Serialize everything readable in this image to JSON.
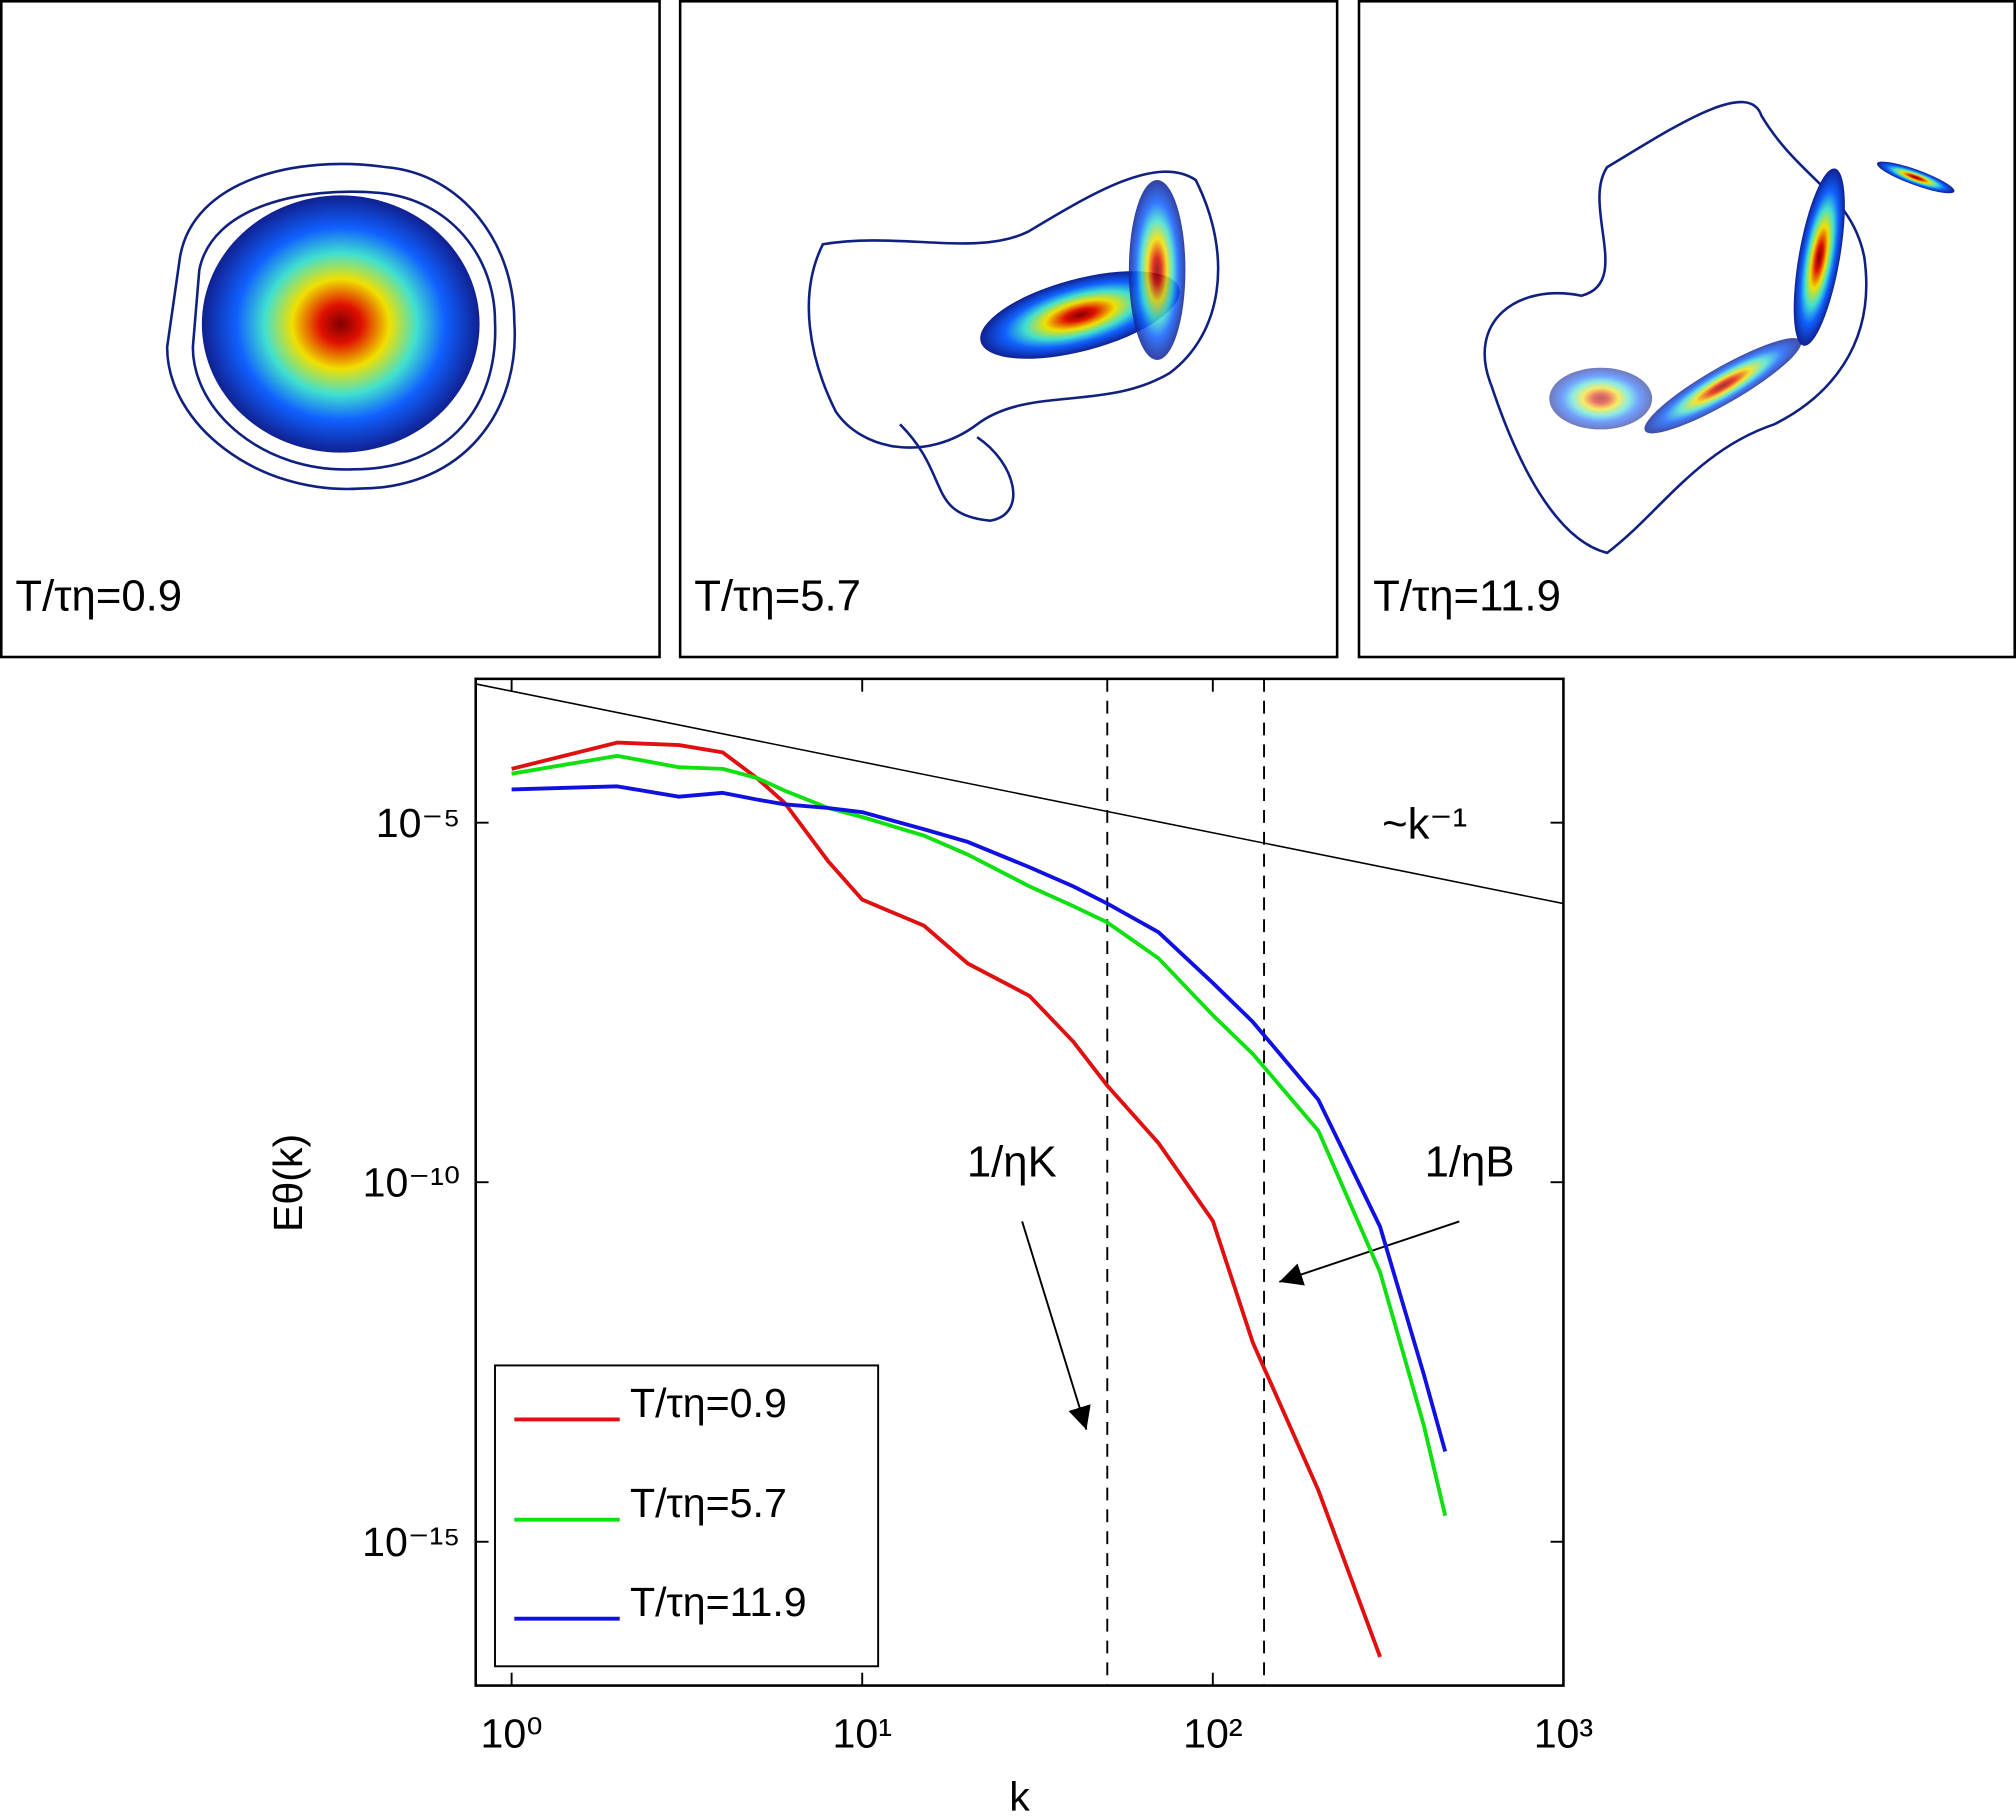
{
  "panels": [
    {
      "label": "T/τη=0.9"
    },
    {
      "label": "T/τη=5.7"
    },
    {
      "label": "T/τη=11.9"
    }
  ],
  "chart_data": {
    "type": "line",
    "xlabel": "k",
    "ylabel": "Eθ(k)",
    "xscale": "log",
    "yscale": "log",
    "xlim": [
      0.79,
      1000
    ],
    "ylim": [
      1e-17,
      0.001
    ],
    "xticks": [
      {
        "value": 1,
        "label": "10⁰"
      },
      {
        "value": 10,
        "label": "10¹"
      },
      {
        "value": 100,
        "label": "10²"
      },
      {
        "value": 1000,
        "label": "10³"
      }
    ],
    "yticks": [
      {
        "value": 1e-15,
        "label": "10⁻¹⁵"
      },
      {
        "value": 1e-10,
        "label": "10⁻¹⁰"
      },
      {
        "value": 1e-05,
        "label": "10⁻⁵"
      }
    ],
    "legend": "lower left",
    "x": [
      1,
      2,
      3,
      4,
      5,
      6,
      8,
      10,
      15,
      20,
      30,
      40,
      50,
      70,
      100,
      130,
      200,
      300,
      400,
      460
    ],
    "series": [
      {
        "name": "T/τη=0.9",
        "color": "#e01010",
        "values": [
          5.6e-05,
          0.00013,
          0.00012,
          9.5e-05,
          4.2e-05,
          1.9e-05,
          2.9e-06,
          8.5e-07,
          3.7e-07,
          1.1e-07,
          3.9e-08,
          9e-09,
          2.2e-09,
          3.5e-10,
          2.9e-11,
          5.9e-13,
          5.2e-15,
          2.5e-17,
          null,
          null
        ]
      },
      {
        "name": "T/τη=5.7",
        "color": "#10e010",
        "values": [
          4.8e-05,
          8.5e-05,
          5.9e-05,
          5.6e-05,
          4.2e-05,
          2.8e-05,
          1.6e-05,
          1.2e-05,
          6.6e-06,
          3.6e-06,
          1.3e-06,
          6.9e-07,
          4.1e-07,
          1.3e-07,
          2.1e-08,
          6.1e-09,
          5.2e-10,
          5.6e-12,
          4.1e-14,
          2.3e-15
        ]
      },
      {
        "name": "T/τη=11.9",
        "color": "#1010e0",
        "values": [
          2.9e-05,
          3.2e-05,
          2.3e-05,
          2.6e-05,
          2.1e-05,
          1.8e-05,
          1.6e-05,
          1.4e-05,
          8.1e-06,
          5.4e-06,
          2.4e-06,
          1.3e-06,
          7.5e-07,
          3e-07,
          5.9e-08,
          1.7e-08,
          1.4e-09,
          2.4e-11,
          2.1e-13,
          1.8e-14
        ]
      }
    ],
    "reference_line": {
      "x": [
        0.79,
        1000
      ],
      "values": [
        0.00085,
        7.5e-07
      ]
    },
    "vlines": [
      50,
      140
    ],
    "annotations": [
      "~k⁻¹",
      "1/ηK",
      "1/ηB"
    ]
  }
}
